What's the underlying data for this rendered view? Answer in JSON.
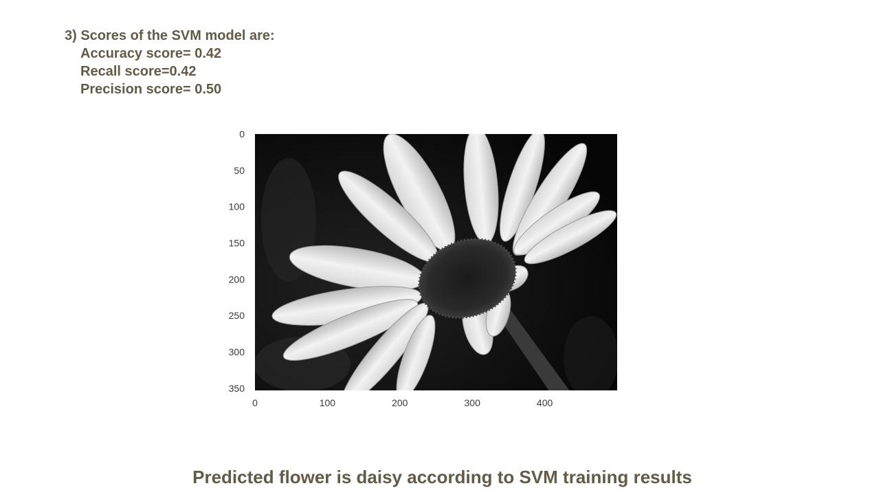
{
  "scores": {
    "heading": "3) Scores of the SVM model are:",
    "items": [
      "Accuracy score= 0.42",
      "Recall score=0.42",
      "Precision score= 0.50"
    ]
  },
  "image_plot": {
    "x_ticks": [
      "0",
      "100",
      "200",
      "300",
      "400"
    ],
    "y_ticks": [
      "0",
      "50",
      "100",
      "150",
      "200",
      "250",
      "300",
      "350"
    ],
    "x_range": [
      0,
      500
    ],
    "y_range": [
      0,
      353
    ]
  },
  "caption": "Predicted flower is daisy according to SVM training results"
}
